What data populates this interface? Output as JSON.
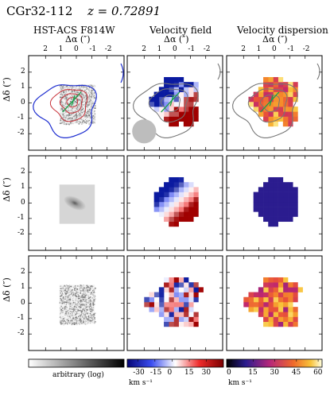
{
  "header": {
    "object_name": "CGr32-112",
    "redshift": "z = 0.72891"
  },
  "columns": [
    {
      "title": "HST-ACS F814W"
    },
    {
      "title": "Velocity field"
    },
    {
      "title": "Velocity dispersion"
    }
  ],
  "axes": {
    "x_label": "Δα (″)",
    "y_label": "Δδ (″)",
    "x_ticks": [
      "2",
      "1",
      "0",
      "-1",
      "-2"
    ],
    "y_ticks": [
      "2",
      "1",
      "0",
      "-1",
      "-2"
    ]
  },
  "colorbars": [
    {
      "label": "arbitrary (log)",
      "ticks": []
    },
    {
      "label": "km s⁻¹",
      "ticks": [
        "-30",
        "-15",
        "0",
        "15",
        "30"
      ]
    },
    {
      "label": "km s⁻¹",
      "ticks": [
        "0",
        "15",
        "30",
        "45",
        "60"
      ]
    }
  ],
  "colors": {
    "contour_outer": "#1f2fd0",
    "contour_inner": "#c8323a",
    "contour_grey": "#777777",
    "kinematic_axis": "#1aa04a",
    "beam": "#bdbdbd",
    "dispersion_model": "#2b1c8f"
  }
}
